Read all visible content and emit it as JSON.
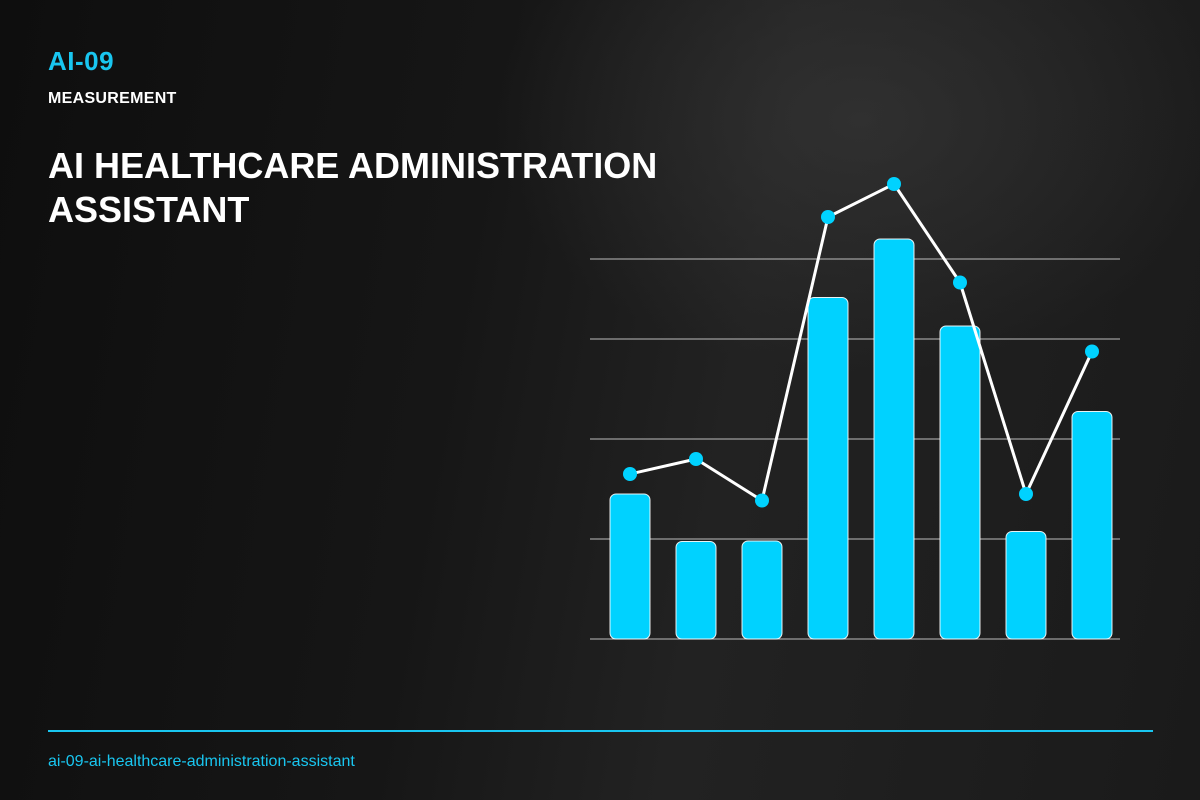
{
  "header": {
    "code": "AI-09",
    "category": "MEASUREMENT",
    "title": "AI HEALTHCARE ADMINISTRATION ASSISTANT"
  },
  "footer": {
    "slug": "ai-09-ai-healthcare-administration-assistant"
  },
  "colors": {
    "accent": "#19c6f0",
    "bar": "#00d2ff",
    "line": "#ffffff",
    "grid": "#d8d8d8"
  },
  "chart_data": {
    "type": "bar",
    "categories": [
      "",
      "",
      "",
      "",
      "",
      "",
      "",
      ""
    ],
    "series": [
      {
        "type": "bar",
        "values": [
          29,
          19.5,
          19.6,
          68.3,
          80,
          62.6,
          21.5,
          45.5
        ]
      },
      {
        "type": "line",
        "values": [
          33,
          36,
          27.7,
          84.4,
          91,
          71.3,
          29,
          57.5
        ]
      }
    ],
    "ylim": [
      0,
      100
    ],
    "grid": true,
    "gridlines": [
      20,
      40,
      60,
      76
    ]
  }
}
